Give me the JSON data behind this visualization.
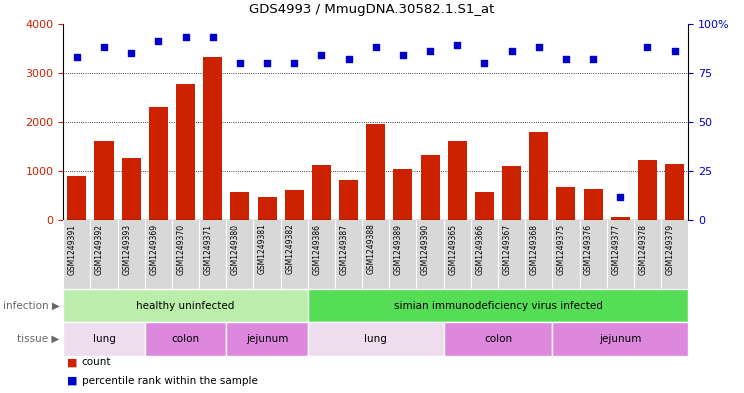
{
  "title": "GDS4993 / MmugDNA.30582.1.S1_at",
  "samples": [
    "GSM1249391",
    "GSM1249392",
    "GSM1249393",
    "GSM1249369",
    "GSM1249370",
    "GSM1249371",
    "GSM1249380",
    "GSM1249381",
    "GSM1249382",
    "GSM1249386",
    "GSM1249387",
    "GSM1249388",
    "GSM1249389",
    "GSM1249390",
    "GSM1249365",
    "GSM1249366",
    "GSM1249367",
    "GSM1249368",
    "GSM1249375",
    "GSM1249376",
    "GSM1249377",
    "GSM1249378",
    "GSM1249379"
  ],
  "counts": [
    900,
    1600,
    1270,
    2300,
    2780,
    3320,
    570,
    480,
    620,
    1120,
    820,
    1960,
    1040,
    1330,
    1600,
    570,
    1110,
    1800,
    670,
    640,
    55,
    1220,
    1150
  ],
  "percentiles": [
    83,
    88,
    85,
    91,
    93,
    93,
    80,
    80,
    80,
    84,
    82,
    88,
    84,
    86,
    89,
    80,
    86,
    88,
    82,
    82,
    12,
    88,
    86
  ],
  "bar_color": "#cc2200",
  "dot_color": "#0000cc",
  "infection_groups": [
    {
      "label": "healthy uninfected",
      "start": 0,
      "end": 9,
      "color": "#bbeeaa"
    },
    {
      "label": "simian immunodeficiency virus infected",
      "start": 9,
      "end": 23,
      "color": "#55dd55"
    }
  ],
  "tissue_groups": [
    {
      "label": "lung",
      "start": 0,
      "end": 3,
      "color": "#eeddee"
    },
    {
      "label": "colon",
      "start": 3,
      "end": 6,
      "color": "#dd88dd"
    },
    {
      "label": "jejunum",
      "start": 6,
      "end": 9,
      "color": "#dd88dd"
    },
    {
      "label": "lung",
      "start": 9,
      "end": 14,
      "color": "#eeddee"
    },
    {
      "label": "colon",
      "start": 14,
      "end": 18,
      "color": "#dd88dd"
    },
    {
      "label": "jejunum",
      "start": 18,
      "end": 23,
      "color": "#dd88dd"
    }
  ],
  "ylim_left": [
    0,
    4000
  ],
  "ylim_right": [
    0,
    100
  ],
  "yticks_left": [
    0,
    1000,
    2000,
    3000,
    4000
  ],
  "yticks_right": [
    0,
    25,
    50,
    75,
    100
  ],
  "legend_count_label": "count",
  "legend_pct_label": "percentile rank within the sample",
  "left_col_labels": [
    "infection",
    "tissue"
  ],
  "arrow_char": "▶"
}
